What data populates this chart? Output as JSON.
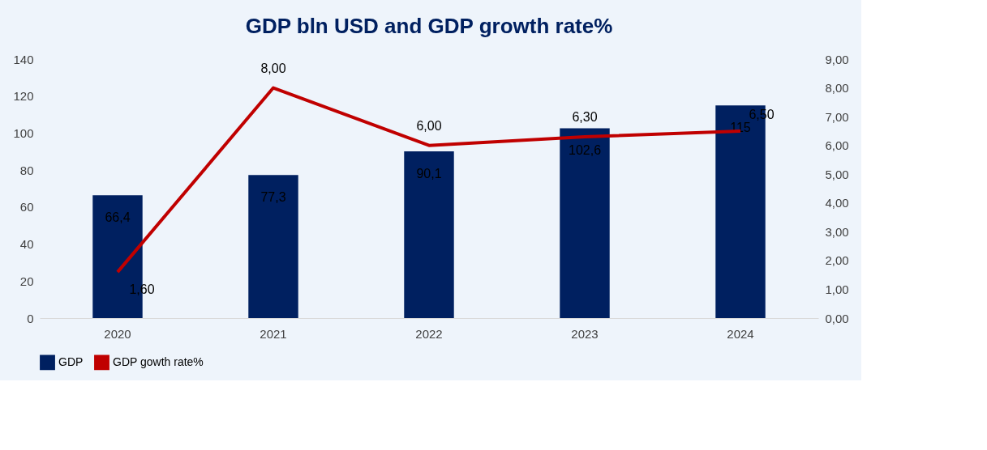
{
  "chart_data": {
    "type": "bar",
    "title": "GDP bln USD and GDP growth rate%",
    "categories": [
      "2020",
      "2021",
      "2022",
      "2023",
      "2024"
    ],
    "series": [
      {
        "name": "GDP",
        "color": "#002060",
        "values": [
          66.4,
          77.3,
          90.1,
          102.6,
          115
        ],
        "value_labels": [
          "66,4",
          "77,3",
          "90,1",
          "102,6",
          "115"
        ]
      },
      {
        "name": "GDP gowth rate%",
        "type": "line",
        "axis": "y2",
        "color": "#c00000",
        "values": [
          1.6,
          8.0,
          6.0,
          6.3,
          6.5
        ],
        "value_labels": [
          "1,60",
          "8,00",
          "6,00",
          "6,30",
          "6,50"
        ]
      }
    ],
    "ylim": [
      0,
      140
    ],
    "yticks": [
      0,
      20,
      40,
      60,
      80,
      100,
      120,
      140
    ],
    "y2lim": [
      0,
      9
    ],
    "y2ticks": [
      {
        "value": 0,
        "label": "0,00"
      },
      {
        "value": 1,
        "label": "1,00"
      },
      {
        "value": 2,
        "label": "2,00"
      },
      {
        "value": 3,
        "label": "3,00"
      },
      {
        "value": 4,
        "label": "4,00"
      },
      {
        "value": 5,
        "label": "5,00"
      },
      {
        "value": 6,
        "label": "6,00"
      },
      {
        "value": 7,
        "label": "7,00"
      },
      {
        "value": 8,
        "label": "8,00"
      },
      {
        "value": 9,
        "label": "9,00"
      }
    ],
    "legend": "bottom",
    "grid": false,
    "marker": "none",
    "line_style": "solid"
  }
}
